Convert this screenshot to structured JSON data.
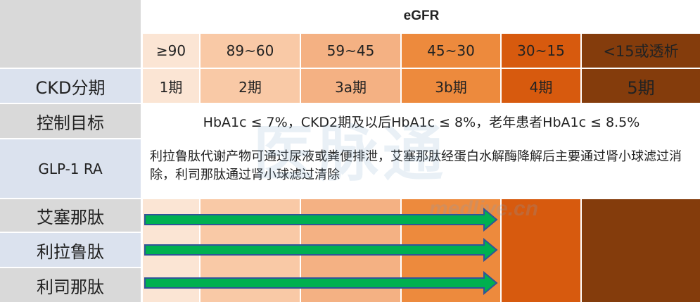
{
  "header": {
    "egfr_label": "eGFR",
    "ranges": [
      "≥90",
      "89~60",
      "59~45",
      "45~30",
      "30~15",
      "<15或透析"
    ]
  },
  "rows": {
    "ckd_stage": {
      "label": "CKD分期",
      "values": [
        "1期",
        "2期",
        "3a期",
        "3b期",
        "4期",
        "5期"
      ]
    },
    "control_target": {
      "label": "控制目标",
      "text": "HbA1c ≤ 7%，CKD2期及以后HbA1c ≤ 8%，老年患者HbA1c ≤ 8.5%"
    },
    "glp1": {
      "label": "GLP-1 RA",
      "text": "利拉鲁肽代谢产物可通过尿液或粪便排泄，艾塞那肽经蛋白水解酶降解后主要通过肾小球滤过消除，利司那肽通过肾小球滤过清除"
    },
    "drugs": [
      {
        "name": "艾塞那肽",
        "applicable_through": "45~30"
      },
      {
        "name": "利拉鲁肽",
        "applicable_through": "45~30"
      },
      {
        "name": "利司那肽",
        "applicable_through": "45~30"
      }
    ]
  },
  "watermark": {
    "logo": "医脉通",
    "url": "medlive.cn"
  },
  "colors": {
    "label_bg_dark": "#d9d9d9",
    "label_bg_light": "#dbe2ee",
    "col1": "#fbe5d4",
    "col2": "#f9c9a6",
    "col3": "#f4b183",
    "col4": "#ed8a3d",
    "col5": "#d75a0e",
    "col6": "#843c0c",
    "arrow_fill": "#00b050",
    "arrow_stroke": "#2f5597"
  }
}
